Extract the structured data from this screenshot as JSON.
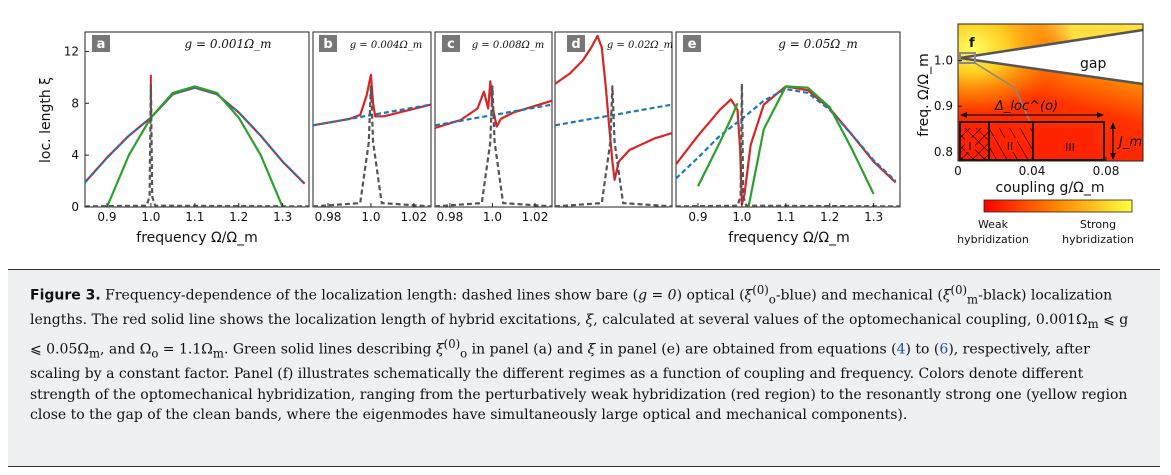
{
  "chart_data": [
    {
      "type": "line",
      "panel": "a",
      "title": "g = 0.001Ω_m",
      "xticks": [
        "0.9",
        "1.0",
        "1.1",
        "1.2",
        "1.3"
      ],
      "yticks": [
        "0",
        "4",
        "8",
        "12"
      ],
      "xlabel": "frequency Ω/Ω_m",
      "ylabel": "loc. length ξ",
      "xlim": [
        0.85,
        1.36
      ],
      "ylim": [
        0,
        13.5
      ],
      "series": [
        {
          "color": "#d62728",
          "x": [
            0.85,
            0.9,
            0.95,
            1.0,
            1.05,
            1.1,
            1.15,
            1.2,
            1.25,
            1.3,
            1.35
          ],
          "y": [
            1.9,
            3.8,
            5.5,
            6.9,
            8.7,
            9.2,
            8.7,
            7.3,
            5.5,
            3.5,
            1.8
          ],
          "spike": {
            "x": 1.0,
            "y": 10.2
          }
        },
        {
          "color": "#1f77b4",
          "style": "dashed",
          "x": [
            0.85,
            0.9,
            0.95,
            1.0,
            1.05,
            1.1,
            1.15,
            1.2,
            1.25,
            1.3,
            1.35
          ],
          "y": [
            1.9,
            3.8,
            5.5,
            6.9,
            8.7,
            9.2,
            8.7,
            7.3,
            5.5,
            3.5,
            1.8
          ]
        },
        {
          "color": "#2ca02c",
          "x": [
            0.9,
            0.95,
            1.0,
            1.05,
            1.1,
            1.15,
            1.2,
            1.25,
            1.3
          ],
          "y": [
            0,
            4.0,
            6.9,
            8.8,
            9.3,
            8.8,
            6.9,
            4.0,
            0
          ]
        },
        {
          "color": "#555555",
          "style": "dashed",
          "x": [
            0.85,
            0.99,
            0.997,
            1.0,
            1.003,
            1.01,
            1.36
          ],
          "y": [
            0.05,
            0.1,
            0.8,
            9.5,
            0.8,
            0.1,
            0.05
          ]
        }
      ]
    },
    {
      "type": "line",
      "panel": "b",
      "title": "g = 0.004Ω_m",
      "xticks": [
        "0.98",
        "1.0",
        "1.02"
      ],
      "xlim": [
        0.973,
        1.028
      ],
      "ylim": [
        0,
        13.5
      ],
      "series": [
        {
          "color": "#d62728",
          "x": [
            0.973,
            0.99,
            0.995,
            0.998,
            1.0,
            1.001,
            1.002,
            1.006,
            1.028
          ],
          "y": [
            6.3,
            6.8,
            7.1,
            8.6,
            10.2,
            8.0,
            7.0,
            7.0,
            7.9
          ]
        },
        {
          "color": "#1f77b4",
          "style": "dashed",
          "x": [
            0.973,
            1.028
          ],
          "y": [
            6.3,
            7.9
          ]
        },
        {
          "color": "#555555",
          "style": "dashed",
          "x": [
            0.973,
            0.995,
            0.999,
            1.0,
            1.001,
            1.005,
            1.028
          ],
          "y": [
            0.05,
            0.3,
            5.0,
            9.3,
            5.0,
            0.3,
            0.05
          ]
        }
      ]
    },
    {
      "type": "line",
      "panel": "c",
      "title": "g = 0.008Ω_m",
      "xticks": [
        "0.98",
        "1.0",
        "1.02"
      ],
      "xlim": [
        0.973,
        1.028
      ],
      "ylim": [
        0,
        13.5
      ],
      "series": [
        {
          "color": "#d62728",
          "x": [
            0.973,
            0.985,
            0.993,
            0.996,
            0.998,
            0.999,
            1.0,
            1.002,
            1.004,
            1.01,
            1.028
          ],
          "y": [
            6.1,
            6.7,
            7.6,
            8.9,
            7.6,
            9.7,
            7.8,
            6.2,
            6.8,
            7.3,
            8.2
          ]
        },
        {
          "color": "#1f77b4",
          "style": "dashed",
          "x": [
            0.973,
            1.028
          ],
          "y": [
            6.3,
            7.9
          ]
        },
        {
          "color": "#555555",
          "style": "dashed",
          "x": [
            0.973,
            0.995,
            0.999,
            1.0,
            1.001,
            1.005,
            1.028
          ],
          "y": [
            0.05,
            0.3,
            5.0,
            9.3,
            5.0,
            0.3,
            0.05
          ]
        }
      ]
    },
    {
      "type": "line",
      "panel": "d",
      "title": "g = 0.02Ω_m",
      "xlim": [
        0.973,
        1.028
      ],
      "ylim": [
        0,
        13.5
      ],
      "series": [
        {
          "color": "#d62728",
          "x": [
            0.973,
            0.98,
            0.986,
            0.99,
            0.993,
            0.995,
            0.997,
            0.9985,
            1.0,
            1.001,
            1.003,
            1.008,
            1.02,
            1.028
          ],
          "y": [
            9.5,
            10.3,
            11.3,
            12.3,
            13.2,
            12.3,
            9.0,
            6.2,
            3.5,
            2.1,
            3.5,
            4.4,
            5.3,
            5.7
          ]
        },
        {
          "color": "#1f77b4",
          "style": "dashed",
          "x": [
            0.973,
            1.028
          ],
          "y": [
            6.3,
            7.9
          ]
        },
        {
          "color": "#555555",
          "style": "dashed",
          "x": [
            0.973,
            0.995,
            0.999,
            1.0,
            1.001,
            1.005,
            1.028
          ],
          "y": [
            0.05,
            0.3,
            5.0,
            9.3,
            5.0,
            0.3,
            0.05
          ]
        }
      ]
    },
    {
      "type": "line",
      "panel": "e",
      "title": "g = 0.05Ω_m",
      "xticks": [
        "0.9",
        "1.0",
        "1.1",
        "1.2",
        "1.3"
      ],
      "xlabel": "frequency Ω/Ω_m",
      "xlim": [
        0.85,
        1.36
      ],
      "ylim": [
        0,
        13.5
      ],
      "series": [
        {
          "color": "#d62728",
          "x": [
            0.85,
            0.9,
            0.95,
            0.975,
            0.99,
            0.996,
            1.0,
            1.006,
            1.02,
            1.05,
            1.1,
            1.15,
            1.2,
            1.25,
            1.3,
            1.35
          ],
          "y": [
            3.3,
            5.5,
            7.5,
            8.3,
            7.5,
            4.5,
            0.2,
            1.0,
            4.8,
            7.9,
            9.3,
            9.0,
            7.6,
            5.6,
            3.5,
            1.9
          ]
        },
        {
          "color": "#1f77b4",
          "style": "dashed",
          "x": [
            0.85,
            0.9,
            0.95,
            1.0,
            1.05,
            1.1,
            1.15,
            1.2,
            1.25,
            1.3,
            1.35
          ],
          "y": [
            2.2,
            3.8,
            5.5,
            6.8,
            8.2,
            9.1,
            8.8,
            7.5,
            5.6,
            3.6,
            2.0
          ]
        },
        {
          "color": "#2ca02c",
          "x": [
            0.9,
            0.95,
            0.975,
            0.99
          ],
          "y": [
            1.6,
            5.0,
            6.8,
            8.0
          ]
        },
        {
          "color": "#2ca02c",
          "x": [
            1.015,
            1.05,
            1.1,
            1.15,
            1.2,
            1.25,
            1.3
          ],
          "y": [
            0,
            6.0,
            9.3,
            9.2,
            7.7,
            4.5,
            1.0
          ]
        },
        {
          "color": "#555555",
          "style": "dashed",
          "x": [
            0.85,
            0.99,
            0.997,
            1.0,
            1.003,
            1.01,
            1.36
          ],
          "y": [
            0.05,
            0.1,
            0.8,
            9.5,
            0.8,
            0.1,
            0.05
          ]
        }
      ]
    },
    {
      "type": "heatmap",
      "panel": "f",
      "xticks": [
        "0",
        "0.04",
        "0.08"
      ],
      "yticks": [
        "0.8",
        "0.9",
        "1.0"
      ],
      "xlabel": "coupling g/Ω_m",
      "ylabel": "freq. Ω/Ω_m",
      "xlim": [
        0,
        0.1
      ],
      "ylim": [
        0.78,
        1.08
      ],
      "annotations": [
        "gap",
        "Δ_loc^(o)",
        "J_m",
        "I",
        "II",
        "III"
      ],
      "colorbar": {
        "colors": [
          "#ff0000",
          "#ffff40"
        ],
        "low_label": "Weak\nhybridization",
        "high_label": "Strong\nhybridization"
      }
    }
  ],
  "panel_labels": [
    "a",
    "b",
    "c",
    "d",
    "e",
    "f"
  ],
  "caption": {
    "label": "Figure 3.",
    "s1": " Frequency-dependence of the localization length: dashed lines show bare (",
    "s2": "g = 0",
    "s3": ") optical (",
    "s4": "ξ",
    "s5": "(0)",
    "s6": "o",
    "s7": "-blue) and mechanical (",
    "s8": "ξ",
    "s9": "(0)",
    "s10": "m",
    "s11": "-black) localization lengths. The red solid line shows the localization length of hybrid excitations, ",
    "s12": "ξ",
    "s13": ", calculated at several values of the optomechanical coupling, ",
    "s14": "0.001Ω",
    "s15": "m",
    "s16": " ⩽ g ⩽ 0.05Ω",
    "s17": "m",
    "s18": ", and ",
    "s19": "Ω",
    "s20": "o",
    "s21": " = 1.1Ω",
    "s22": "m",
    "s23": ". Green solid lines describing ",
    "s24": "ξ",
    "s25": "(0)",
    "s26": "o",
    "s27": " in panel (a) and ",
    "s28": "ξ",
    "s29": " in panel (e) are obtained from equations (",
    "ref1": "4",
    "s30": ") to (",
    "ref2": "6",
    "s31": "), respectively, after scaling by a constant factor. Panel (f) illustrates schematically the different regimes as a function of coupling and frequency. Colors denote different strength of the optomechanical hybridization, ranging from the perturbatively weak hybridization (red region) to the resonantly strong one (yellow region close to the gap of the clean bands, where the eigenmodes have simultaneously large optical and mechanical components)."
  }
}
